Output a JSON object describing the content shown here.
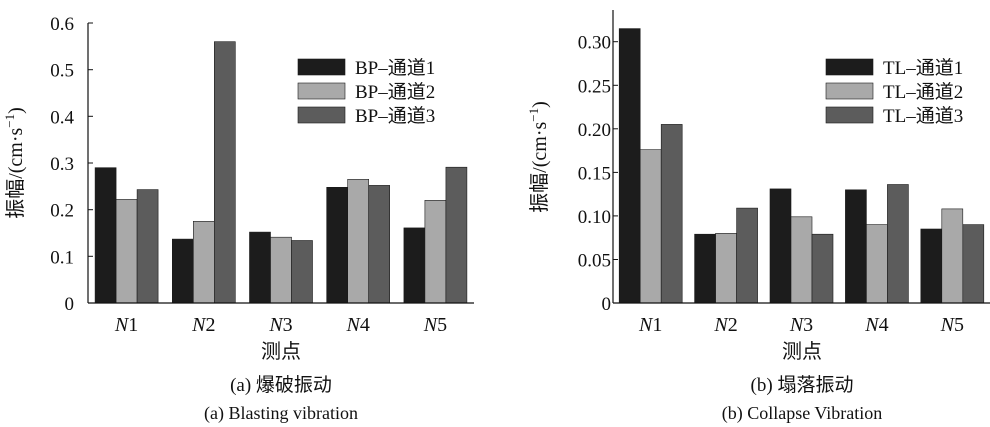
{
  "chart_data": [
    {
      "type": "bar",
      "panel_id": "a",
      "categories": [
        "N1",
        "N2",
        "N3",
        "N4",
        "N5"
      ],
      "category_prefix": "N",
      "category_suffix": [
        "1",
        "2",
        "3",
        "4",
        "5"
      ],
      "series": [
        {
          "name": "BP–通道1",
          "values": [
            0.29,
            0.137,
            0.152,
            0.248,
            0.161
          ],
          "color": "#1c1c1c"
        },
        {
          "name": "BP–通道2",
          "values": [
            0.222,
            0.175,
            0.141,
            0.265,
            0.22
          ],
          "color": "#a9a9a9"
        },
        {
          "name": "BP–通道3",
          "values": [
            0.243,
            0.56,
            0.134,
            0.252,
            0.291
          ],
          "color": "#5c5c5c"
        }
      ],
      "ylim": [
        0,
        0.6
      ],
      "yticks": [
        "0",
        "0.1",
        "0.2",
        "0.3",
        "0.4",
        "0.5",
        "0.6"
      ],
      "ylabel": "振幅/(cm·s",
      "ylabel_exp": "−1",
      "ylabel_close": ")",
      "xlabel": "测点",
      "caption_cn": "(a) 爆破振动",
      "caption_en": "(a) Blasting vibration",
      "legend_position": "top-right",
      "grid": false
    },
    {
      "type": "bar",
      "panel_id": "b",
      "categories": [
        "N1",
        "N2",
        "N3",
        "N4",
        "N5"
      ],
      "category_prefix": "N",
      "category_suffix": [
        "1",
        "2",
        "3",
        "4",
        "5"
      ],
      "series": [
        {
          "name": "TL–通道1",
          "values": [
            0.315,
            0.079,
            0.131,
            0.13,
            0.085
          ],
          "color": "#1c1c1c"
        },
        {
          "name": "TL–通道2",
          "values": [
            0.176,
            0.08,
            0.099,
            0.09,
            0.108
          ],
          "color": "#a9a9a9"
        },
        {
          "name": "TL–通道3",
          "values": [
            0.205,
            0.109,
            0.079,
            0.136,
            0.09
          ],
          "color": "#5c5c5c"
        }
      ],
      "ylim": [
        0,
        0.3364
      ],
      "yticks": [
        "0",
        "0.05",
        "0.10",
        "0.15",
        "0.20",
        "0.25",
        "0.30"
      ],
      "ylabel": "振幅/(cm·s",
      "ylabel_exp": "−1",
      "ylabel_close": ")",
      "xlabel": "测点",
      "caption_cn": "(b) 塌落振动",
      "caption_en": "(b) Collapse Vibration",
      "legend_position": "top-right",
      "grid": false
    }
  ]
}
